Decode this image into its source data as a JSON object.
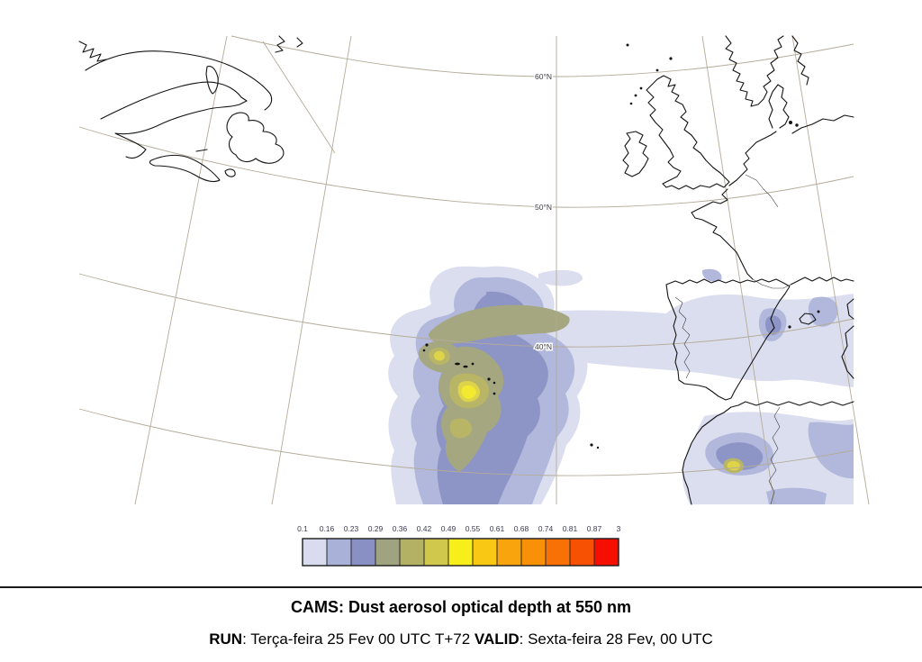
{
  "map": {
    "region": "North Atlantic - Western Europe - Northwest Africa",
    "latitude_labels": [
      {
        "text": "60°N"
      },
      {
        "text": "50°N"
      },
      {
        "text": "40°N"
      }
    ]
  },
  "colorbar": {
    "tick_labels": [
      "0.1",
      "0.16",
      "0.23",
      "0.29",
      "0.36",
      "0.42",
      "0.49",
      "0.55",
      "0.61",
      "0.68",
      "0.74",
      "0.81",
      "0.87",
      "3"
    ],
    "cell_colors": [
      "#d8dcee",
      "#aab1d8",
      "#8890c4",
      "#9fa37f",
      "#b3b164",
      "#cfc84d",
      "#f7ee1a",
      "#f9c815",
      "#f9a30d",
      "#f89008",
      "#f87106",
      "#f75203",
      "#f60f00"
    ],
    "label_color": "#3b3b52",
    "border_color": "#2a2a2a"
  },
  "footer": {
    "title": "CAMS: Dust aerosol optical depth at 550 nm",
    "run_label": "RUN",
    "run_text": ": Terça-feira 25 Fev 00 UTC T+72 ",
    "valid_label": "VALID",
    "valid_text": ": Sexta-feira 28 Fev, 00 UTC"
  },
  "chart_data": {
    "type": "filled_contour_map",
    "title": "CAMS: Dust aerosol optical depth at 550 nm",
    "variable": "Dust aerosol optical depth at 550 nm",
    "levels": [
      0.1,
      0.16,
      0.23,
      0.29,
      0.36,
      0.42,
      0.49,
      0.55,
      0.61,
      0.68,
      0.74,
      0.81,
      0.87,
      3
    ],
    "palette": [
      "#d8dcee",
      "#aab1d8",
      "#8890c4",
      "#9fa37f",
      "#b3b164",
      "#cfc84d",
      "#f7ee1a",
      "#f9c815",
      "#f9a30d",
      "#f89008",
      "#f87106",
      "#f75203",
      "#f60f00"
    ],
    "graticule_latitudes": [
      "60°N",
      "50°N",
      "40°N"
    ],
    "legend_position": "bottom-center",
    "features": [
      {
        "name": "main dust plume",
        "location": "around the Azores, southwest of Iberia",
        "peak_aod": 0.55
      },
      {
        "name": "dust band",
        "location": "across central and eastern Iberia into the western Mediterranean",
        "aod_range": [
          0.1,
          0.29
        ]
      },
      {
        "name": "secondary dust plume",
        "location": "Morocco / Northwest Africa",
        "peak_aod": 0.49
      }
    ]
  }
}
